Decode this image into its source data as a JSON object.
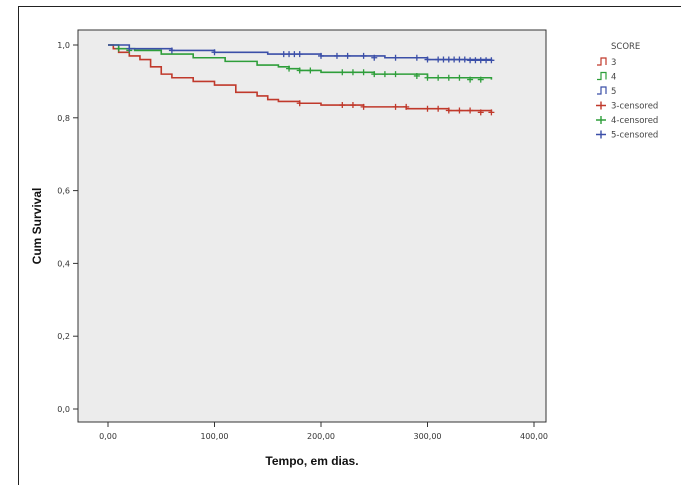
{
  "chart_data": {
    "type": "line",
    "title": "",
    "xlabel": "Tempo, em dias.",
    "ylabel": "Cum Survival",
    "xlim": [
      0,
      400
    ],
    "ylim": [
      0,
      1.0
    ],
    "x_ticks": [
      0,
      100,
      200,
      300,
      400
    ],
    "x_tick_labels": [
      "0,00",
      "100,00",
      "200,00",
      "300,00",
      "400,00"
    ],
    "y_ticks": [
      0,
      0.2,
      0.4,
      0.6,
      0.8,
      1.0
    ],
    "y_tick_labels": [
      "0,0",
      "0,2",
      "0,4",
      "0,6",
      "0,8",
      "1,0"
    ],
    "grid": false,
    "legend_position": "right",
    "legend_title": "SCORE",
    "legend_entries": [
      "3",
      "4",
      "5",
      "3-censored",
      "4-censored",
      "5-censored"
    ],
    "series": [
      {
        "name": "3",
        "color": "#c0392b",
        "x": [
          0,
          5,
          10,
          20,
          30,
          40,
          50,
          60,
          80,
          100,
          120,
          140,
          150,
          160,
          180,
          200,
          240,
          280,
          320,
          360
        ],
        "y": [
          1.0,
          0.99,
          0.98,
          0.97,
          0.96,
          0.94,
          0.92,
          0.91,
          0.9,
          0.89,
          0.87,
          0.86,
          0.85,
          0.845,
          0.84,
          0.835,
          0.83,
          0.825,
          0.82,
          0.815
        ],
        "censored_x": [
          180,
          220,
          230,
          240,
          270,
          280,
          300,
          310,
          320,
          330,
          340,
          350,
          360
        ],
        "censored_y": [
          0.84,
          0.835,
          0.835,
          0.83,
          0.83,
          0.83,
          0.825,
          0.825,
          0.82,
          0.82,
          0.82,
          0.815,
          0.815
        ]
      },
      {
        "name": "4",
        "color": "#2e9e3a",
        "x": [
          0,
          10,
          25,
          50,
          80,
          110,
          140,
          160,
          170,
          180,
          200,
          250,
          300,
          360
        ],
        "y": [
          1.0,
          0.99,
          0.985,
          0.975,
          0.965,
          0.955,
          0.945,
          0.94,
          0.935,
          0.93,
          0.925,
          0.92,
          0.91,
          0.905
        ],
        "censored_x": [
          10,
          20,
          170,
          180,
          190,
          220,
          230,
          240,
          250,
          260,
          270,
          290,
          300,
          310,
          320,
          330,
          340,
          350
        ],
        "censored_y": [
          0.99,
          0.985,
          0.935,
          0.93,
          0.93,
          0.925,
          0.925,
          0.925,
          0.92,
          0.92,
          0.92,
          0.915,
          0.91,
          0.91,
          0.91,
          0.91,
          0.905,
          0.905
        ]
      },
      {
        "name": "5",
        "color": "#3b4fa8",
        "x": [
          0,
          20,
          60,
          100,
          150,
          200,
          260,
          300,
          360
        ],
        "y": [
          1.0,
          0.99,
          0.985,
          0.98,
          0.975,
          0.97,
          0.965,
          0.96,
          0.958
        ],
        "censored_x": [
          20,
          60,
          100,
          165,
          170,
          175,
          180,
          200,
          215,
          225,
          240,
          250,
          270,
          290,
          300,
          310,
          315,
          320,
          325,
          330,
          335,
          340,
          345,
          350,
          355,
          360
        ],
        "censored_y": [
          0.99,
          0.985,
          0.98,
          0.975,
          0.975,
          0.975,
          0.975,
          0.97,
          0.97,
          0.97,
          0.97,
          0.965,
          0.965,
          0.965,
          0.96,
          0.96,
          0.96,
          0.96,
          0.96,
          0.96,
          0.96,
          0.958,
          0.958,
          0.958,
          0.958,
          0.958
        ]
      }
    ]
  }
}
